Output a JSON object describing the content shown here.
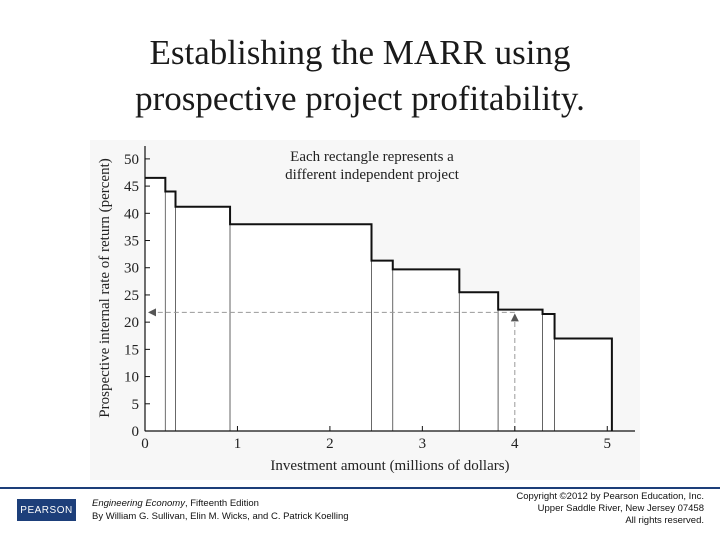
{
  "slide": {
    "title_line1": "Establishing the MARR using",
    "title_line2": "prospective project profitability."
  },
  "chart_data": {
    "type": "bar",
    "subtype": "stepped-rectangles",
    "annotation_line1": "Each rectangle represents a",
    "annotation_line2": "different independent project",
    "xlabel": "Investment amount (millions of dollars)",
    "ylabel": "Prospective internal rate of return (percent)",
    "xlim": [
      0,
      5.3
    ],
    "ylim": [
      0,
      52
    ],
    "xticks": [
      "0",
      "1",
      "2",
      "3",
      "4",
      "5"
    ],
    "yticks": [
      "0",
      "5",
      "10",
      "15",
      "20",
      "25",
      "30",
      "35",
      "40",
      "45",
      "50"
    ],
    "projects": [
      {
        "x_start": 0.0,
        "x_end": 0.22,
        "irr": 46.5
      },
      {
        "x_start": 0.22,
        "x_end": 0.33,
        "irr": 44.0
      },
      {
        "x_start": 0.33,
        "x_end": 0.92,
        "irr": 41.2
      },
      {
        "x_start": 0.92,
        "x_end": 2.45,
        "irr": 38.0
      },
      {
        "x_start": 2.45,
        "x_end": 2.68,
        "irr": 31.3
      },
      {
        "x_start": 2.68,
        "x_end": 3.4,
        "irr": 29.7
      },
      {
        "x_start": 3.4,
        "x_end": 3.82,
        "irr": 25.5
      },
      {
        "x_start": 3.82,
        "x_end": 4.3,
        "irr": 22.3
      },
      {
        "x_start": 4.3,
        "x_end": 4.43,
        "irr": 21.5
      },
      {
        "x_start": 4.43,
        "x_end": 5.05,
        "irr": 17.0
      }
    ],
    "marr_guide": {
      "x": 4.0,
      "y": 21.8
    },
    "grid": false
  },
  "footer": {
    "logo": "PEARSON",
    "book_title": "Engineering Economy",
    "edition": ", Fifteenth Edition",
    "authors": "By William G. Sullivan, Elin M. Wicks, and C. Patrick Koelling",
    "copyright1": "Copyright ©2012 by Pearson Education, Inc.",
    "copyright2": "Upper Saddle River, New Jersey 07458",
    "copyright3": "All rights reserved."
  },
  "colors": {
    "footer_blue": "#1d3f7a",
    "outline": "#111111",
    "guide": "#9a9a9a"
  }
}
